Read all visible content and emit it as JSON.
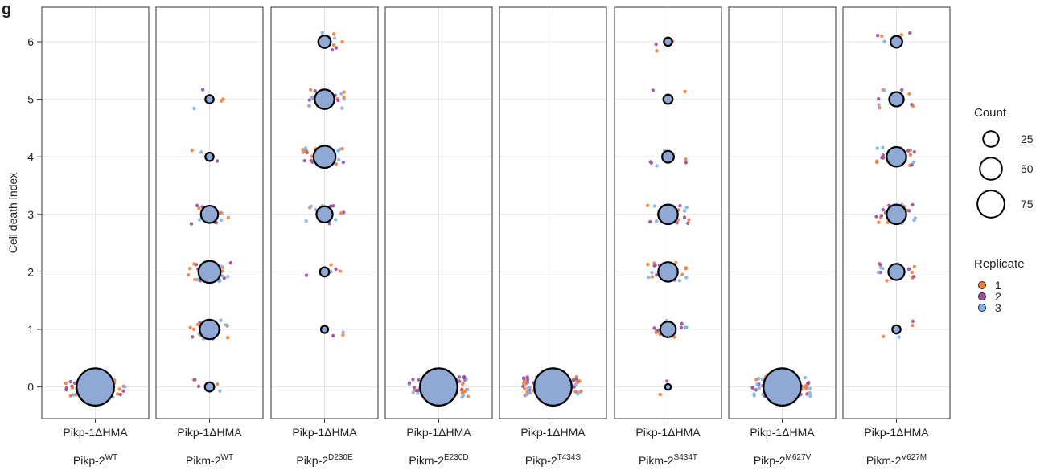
{
  "panel_letter": "g",
  "chart_data": {
    "type": "scatter",
    "ylabel": "Cell death index",
    "xlabel": "",
    "ylim": [
      -0.55,
      6.6
    ],
    "yticks": [
      0,
      1,
      2,
      3,
      4,
      5,
      6
    ],
    "grid": true,
    "facets": [
      {
        "top": "Pikp-1ΔHMA",
        "base": "Pikp-2",
        "sup": "WT",
        "counts": {
          "0": 80,
          "1": 0,
          "2": 0,
          "3": 0,
          "4": 0,
          "5": 0,
          "6": 0
        }
      },
      {
        "top": "Pikp-1ΔHMA",
        "base": "Pikm-2",
        "sup": "WT",
        "counts": {
          "0": 5,
          "1": 22,
          "2": 28,
          "3": 17,
          "4": 4,
          "5": 4,
          "6": 0
        }
      },
      {
        "top": "Pikp-1ΔHMA",
        "base": "Pikp-2",
        "sup": "D230E",
        "counts": {
          "0": 0,
          "1": 3,
          "2": 5,
          "3": 15,
          "4": 28,
          "5": 22,
          "6": 9
        }
      },
      {
        "top": "Pikp-1ΔHMA",
        "base": "Pikm-2",
        "sup": "E230D",
        "counts": {
          "0": 80,
          "1": 0,
          "2": 0,
          "3": 0,
          "4": 0,
          "5": 0,
          "6": 0
        }
      },
      {
        "top": "Pikp-1ΔHMA",
        "base": "Pikp-2",
        "sup": "T434S",
        "counts": {
          "0": 80,
          "1": 0,
          "2": 0,
          "3": 0,
          "4": 0,
          "5": 0,
          "6": 0
        }
      },
      {
        "top": "Pikp-1ΔHMA",
        "base": "Pikm-2",
        "sup": "S434T",
        "counts": {
          "0": 2,
          "1": 14,
          "2": 22,
          "3": 22,
          "4": 8,
          "5": 5,
          "6": 4
        }
      },
      {
        "top": "Pikp-1ΔHMA",
        "base": "Pikp-2",
        "sup": "M627V",
        "counts": {
          "0": 80,
          "1": 0,
          "2": 0,
          "3": 0,
          "4": 0,
          "5": 0,
          "6": 0
        }
      },
      {
        "top": "Pikp-1ΔHMA",
        "base": "Pikm-2",
        "sup": "V627M",
        "counts": {
          "0": 0,
          "1": 4,
          "2": 15,
          "3": 22,
          "4": 22,
          "5": 12,
          "6": 8
        }
      }
    ],
    "legend": {
      "placement": "right",
      "count_title": "Count",
      "count_sizes": [
        25,
        50,
        75
      ],
      "replicate_title": "Replicate",
      "replicates": [
        {
          "label": "1",
          "color": "#f07f3c"
        },
        {
          "label": "2",
          "color": "#9b4f9b"
        },
        {
          "label": "3",
          "color": "#7fb3e8"
        }
      ]
    },
    "bubble_fill": "#8fa8d4",
    "bubble_stroke": "#000000"
  }
}
